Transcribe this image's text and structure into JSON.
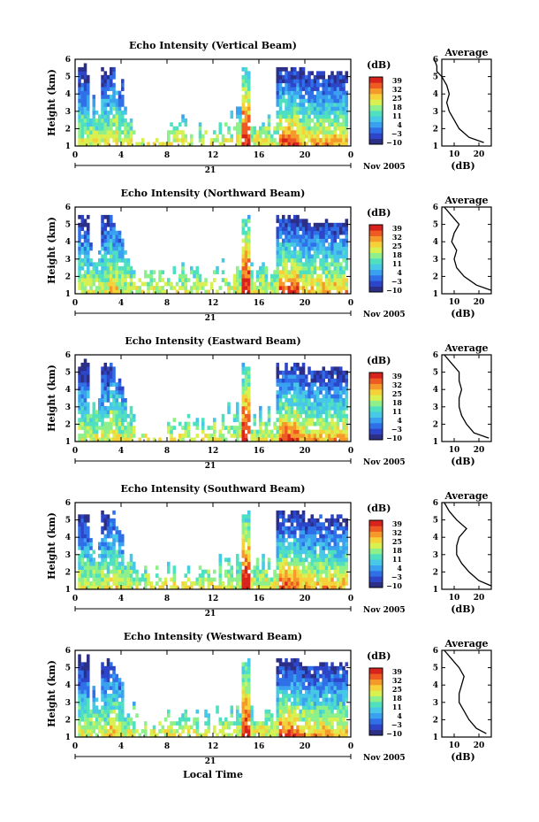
{
  "x_axis": {
    "ticks": [
      "0",
      "4",
      "8",
      "12",
      "16",
      "20",
      "0"
    ],
    "date_day": "21",
    "date_month_year": "Nov 2005",
    "label": "Local Time"
  },
  "colorbar": {
    "unit": "(dB)",
    "ticks": [
      "39",
      "32",
      "25",
      "18",
      "11",
      "4",
      "−3",
      "−10"
    ],
    "colors": [
      "#2b2f86",
      "#2d45c8",
      "#2f6fe8",
      "#3aa0f0",
      "#46c8e6",
      "#4fe0c0",
      "#8ef08a",
      "#d8f050",
      "#f6d23a",
      "#f59a2a",
      "#ee5a22",
      "#d8221c"
    ]
  },
  "chart_data": [
    {
      "type": "heatmap",
      "title": "Echo Intensity (Vertical Beam)",
      "ylabel": "Height (km)",
      "xlim": [
        0,
        24
      ],
      "ylim": [
        1,
        6
      ],
      "yticks": [
        "1",
        "2",
        "3",
        "4",
        "5",
        "6"
      ],
      "avg_profile": {
        "title": "Average",
        "xlabel": "(dB)",
        "xticks": [
          "10",
          "20"
        ],
        "xlim": [
          5,
          25
        ],
        "height": [
          1.2,
          1.5,
          2.0,
          2.5,
          3.0,
          3.5,
          4.0,
          4.5,
          5.0,
          5.3,
          5.6,
          6.0
        ],
        "db": [
          22,
          16,
          12,
          10,
          8,
          7,
          8,
          7,
          5,
          3,
          3,
          2
        ]
      }
    },
    {
      "type": "heatmap",
      "title": "Echo Intensity (Northward Beam)",
      "ylabel": "Height (km)",
      "xlim": [
        0,
        24
      ],
      "ylim": [
        1,
        6
      ],
      "yticks": [
        "1",
        "2",
        "3",
        "4",
        "5",
        "6"
      ],
      "avg_profile": {
        "title": "Average",
        "xlabel": "(dB)",
        "xticks": [
          "10",
          "20"
        ],
        "xlim": [
          5,
          25
        ],
        "height": [
          1.2,
          1.5,
          2.0,
          2.5,
          3.0,
          3.5,
          4.0,
          4.5,
          5.0,
          5.5,
          6.0
        ],
        "db": [
          25,
          19,
          14,
          11,
          10,
          11,
          9,
          10,
          12,
          9,
          6
        ]
      }
    },
    {
      "type": "heatmap",
      "title": "Echo Intensity (Eastward Beam)",
      "ylabel": "Height (km)",
      "xlim": [
        0,
        24
      ],
      "ylim": [
        1,
        6
      ],
      "yticks": [
        "1",
        "2",
        "3",
        "4",
        "5",
        "6"
      ],
      "avg_profile": {
        "title": "Average",
        "xlabel": "(dB)",
        "xticks": [
          "10",
          "20"
        ],
        "xlim": [
          5,
          25
        ],
        "height": [
          1.2,
          1.5,
          2.0,
          2.5,
          3.0,
          3.5,
          4.0,
          4.5,
          5.0,
          5.5,
          6.0
        ],
        "db": [
          24,
          18,
          15,
          13,
          12,
          12,
          13,
          12,
          12,
          9,
          6
        ]
      }
    },
    {
      "type": "heatmap",
      "title": "Echo Intensity (Southward Beam)",
      "ylabel": "Height (km)",
      "xlim": [
        0,
        24
      ],
      "ylim": [
        1,
        6
      ],
      "yticks": [
        "1",
        "2",
        "3",
        "4",
        "5",
        "6"
      ],
      "avg_profile": {
        "title": "Average",
        "xlabel": "(dB)",
        "xticks": [
          "10",
          "20"
        ],
        "xlim": [
          5,
          25
        ],
        "height": [
          1.2,
          1.5,
          2.0,
          2.5,
          3.0,
          3.5,
          4.0,
          4.5,
          5.0,
          5.5,
          6.0
        ],
        "db": [
          25,
          20,
          16,
          13,
          11,
          11,
          12,
          15,
          11,
          8,
          6
        ]
      }
    },
    {
      "type": "heatmap",
      "title": "Echo Intensity (Westward Beam)",
      "ylabel": "Height (km)",
      "xlim": [
        0,
        24
      ],
      "ylim": [
        1,
        6
      ],
      "yticks": [
        "1",
        "2",
        "3",
        "4",
        "5",
        "6"
      ],
      "avg_profile": {
        "title": "Average",
        "xlabel": "(dB)",
        "xticks": [
          "10",
          "20"
        ],
        "xlim": [
          5,
          25
        ],
        "height": [
          1.2,
          1.5,
          2.0,
          2.5,
          3.0,
          3.5,
          4.0,
          4.5,
          5.0,
          5.5,
          6.0
        ],
        "db": [
          23,
          19,
          16,
          14,
          12,
          12,
          13,
          14,
          12,
          9,
          6
        ]
      }
    }
  ]
}
